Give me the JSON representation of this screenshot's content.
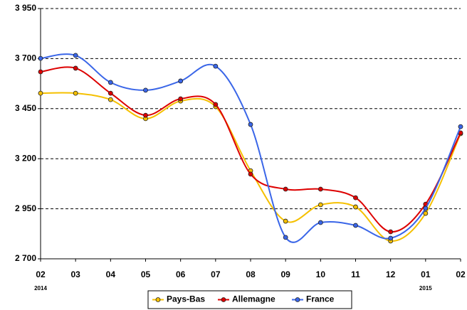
{
  "chart_data": {
    "type": "line",
    "categories": [
      [
        "02",
        "2014"
      ],
      [
        "03"
      ],
      [
        "04"
      ],
      [
        "05"
      ],
      [
        "06"
      ],
      [
        "07"
      ],
      [
        "08"
      ],
      [
        "09"
      ],
      [
        "10"
      ],
      [
        "11"
      ],
      [
        "12"
      ],
      [
        "01",
        "2015"
      ],
      [
        "02"
      ]
    ],
    "series": [
      {
        "name": "Pays-Bas",
        "color": "#f5c000",
        "values": [
          3527,
          3527,
          3495,
          3400,
          3488,
          3460,
          3140,
          2888,
          2970,
          2959,
          2789,
          2927,
          3325
        ]
      },
      {
        "name": "Allemagne",
        "color": "#dd0000",
        "values": [
          3634,
          3652,
          3527,
          3417,
          3499,
          3471,
          3123,
          3048,
          3048,
          3005,
          2835,
          2973,
          3329
        ]
      },
      {
        "name": "France",
        "color": "#3a66e8",
        "values": [
          3701,
          3716,
          3581,
          3542,
          3588,
          3662,
          3371,
          2807,
          2881,
          2867,
          2803,
          2952,
          3360
        ]
      }
    ],
    "ylim": [
      2700,
      3950
    ],
    "yticks": [
      {
        "value": 2700,
        "label": "2 700"
      },
      {
        "value": 2950,
        "label": "2 950"
      },
      {
        "value": 3200,
        "label": "3 200"
      },
      {
        "value": 3450,
        "label": "3 450"
      },
      {
        "value": 3700,
        "label": "3 700"
      },
      {
        "value": 3950,
        "label": "3 950"
      }
    ],
    "grid": true,
    "smooth": true,
    "legend": "bottom"
  }
}
